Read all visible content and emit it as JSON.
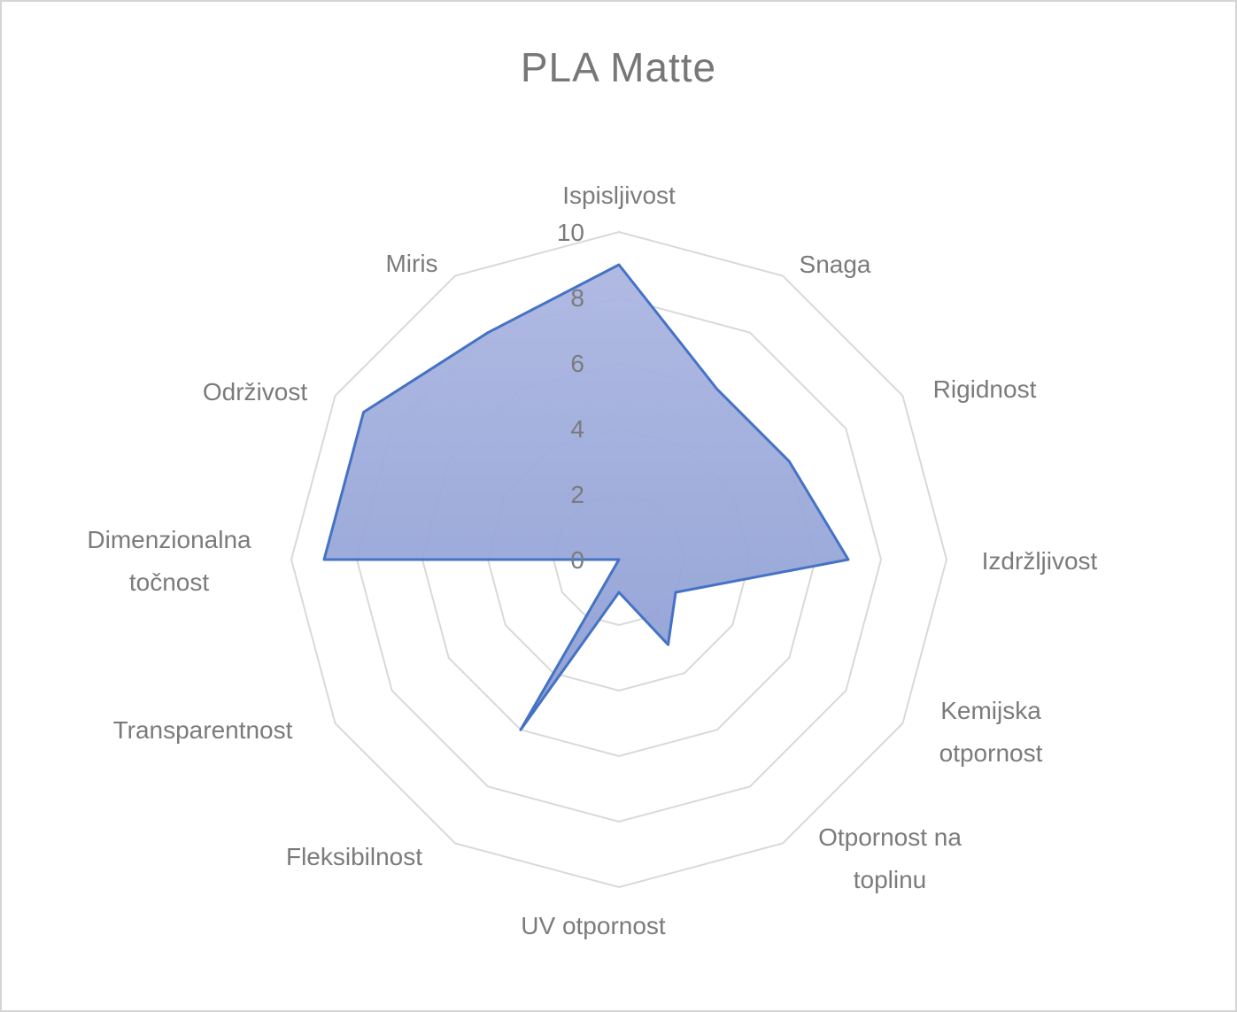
{
  "title": "PLA Matte",
  "colors": {
    "series_stroke": "#4472C4",
    "series_fill_top": "#ACB6E1",
    "series_fill_bottom": "#8C9ED4",
    "grid": "#D9D9D9",
    "labels": "#7B7B7B",
    "title": "#777777",
    "background": "#FFFFFF",
    "canvas_border": "#D5D5D5"
  },
  "chart_data": {
    "type": "radar",
    "title": "PLA Matte",
    "categories": [
      {
        "label": "Ispisljivost",
        "lines": [
          "Ispisljivost"
        ]
      },
      {
        "label": "Snaga",
        "lines": [
          "Snaga"
        ]
      },
      {
        "label": "Rigidnost",
        "lines": [
          "Rigidnost"
        ]
      },
      {
        "label": "Izdržljivost",
        "lines": [
          "Izdržljivost"
        ]
      },
      {
        "label": "Kemijska otpornost",
        "lines": [
          "Kemijska",
          "otpornost"
        ]
      },
      {
        "label": "Otpornost na toplinu",
        "lines": [
          "Otpornost na",
          "toplinu"
        ]
      },
      {
        "label": "UV otpornost",
        "lines": [
          "UV otpornost"
        ]
      },
      {
        "label": "Fleksibilnost",
        "lines": [
          "Fleksibilnost"
        ]
      },
      {
        "label": "Transparentnost",
        "lines": [
          "Transparentnost"
        ]
      },
      {
        "label": "Dimenzionalna točnost",
        "lines": [
          "Dimenzionalna",
          "točnost"
        ]
      },
      {
        "label": "Održivost",
        "lines": [
          "Održivost"
        ]
      },
      {
        "label": "Miris",
        "lines": [
          "Miris"
        ]
      }
    ],
    "series": [
      {
        "name": "PLA Matte",
        "values": [
          9,
          6,
          6,
          7,
          2,
          3,
          1,
          6,
          0,
          9,
          9,
          8
        ]
      }
    ],
    "rmin": 0,
    "rmax": 10,
    "tick_step": 2,
    "tick_labels": [
      "0",
      "2",
      "4",
      "6",
      "8",
      "10"
    ],
    "grid_style": "concentric-rings-no-spokes",
    "legend": "none"
  }
}
